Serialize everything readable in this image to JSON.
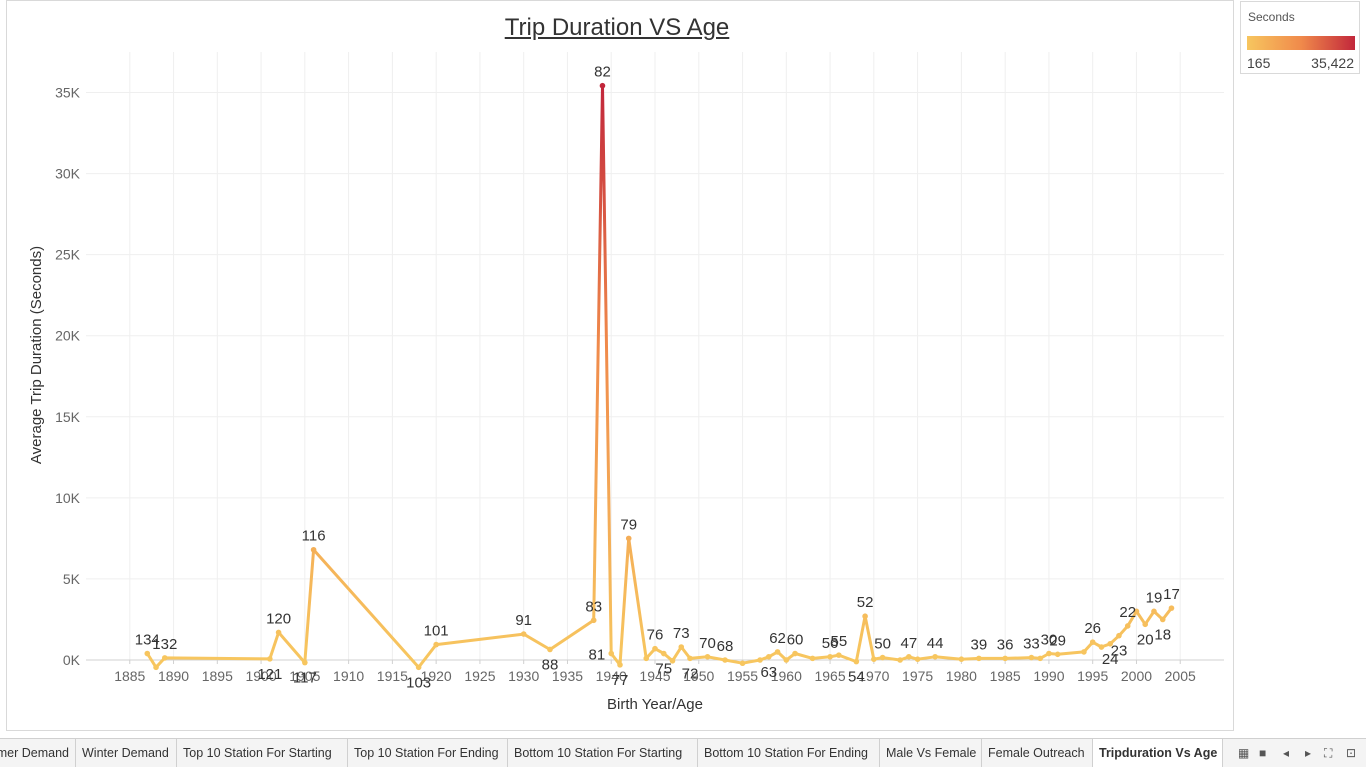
{
  "chart_data": {
    "type": "line",
    "title": "Trip Duration VS Age",
    "xlabel": "Birth Year/Age",
    "ylabel": "Average Trip Duration (Seconds)",
    "xlim": [
      1880,
      2010
    ],
    "ylim": [
      0,
      37500
    ],
    "xticks": [
      1885,
      1890,
      1895,
      1900,
      1905,
      1910,
      1915,
      1920,
      1925,
      1930,
      1935,
      1940,
      1945,
      1950,
      1955,
      1960,
      1965,
      1970,
      1975,
      1980,
      1985,
      1990,
      1995,
      2000,
      2005
    ],
    "yticks": [
      {
        "value": 0,
        "label": "0K"
      },
      {
        "value": 5000,
        "label": "5K"
      },
      {
        "value": 10000,
        "label": "10K"
      },
      {
        "value": 15000,
        "label": "15K"
      },
      {
        "value": 20000,
        "label": "20K"
      },
      {
        "value": 25000,
        "label": "25K"
      },
      {
        "value": 30000,
        "label": "30K"
      },
      {
        "value": 35000,
        "label": "35K"
      }
    ],
    "grid": true,
    "color_scale": {
      "title": "Seconds",
      "min": 165,
      "max": 35422,
      "min_label": "165",
      "max_label": "35,422",
      "colors": [
        "#f7c65f",
        "#f08a4b",
        "#c2273b"
      ]
    },
    "series": [
      {
        "points": [
          {
            "x": 1887,
            "y": 400,
            "label": "134",
            "pos": "above"
          },
          {
            "x": 1888,
            "y": -450
          },
          {
            "x": 1889,
            "y": 130,
            "label": "132",
            "pos": "above"
          },
          {
            "x": 1901,
            "y": 70,
            "label": "121",
            "pos": "below"
          },
          {
            "x": 1902,
            "y": 1700,
            "label": "120",
            "pos": "above"
          },
          {
            "x": 1905,
            "y": -160,
            "label": "117",
            "pos": "below"
          },
          {
            "x": 1906,
            "y": 6800,
            "label": "116",
            "pos": "above"
          },
          {
            "x": 1918,
            "y": -450,
            "label": "103",
            "pos": "below"
          },
          {
            "x": 1920,
            "y": 950,
            "label": "101",
            "pos": "above"
          },
          {
            "x": 1930,
            "y": 1600,
            "label": "91",
            "pos": "above"
          },
          {
            "x": 1933,
            "y": 650,
            "label": "88",
            "pos": "below"
          },
          {
            "x": 1938,
            "y": 2450,
            "label": "83",
            "pos": "above"
          },
          {
            "x": 1939,
            "y": 35422,
            "label": "82",
            "pos": "above"
          },
          {
            "x": 1940,
            "y": 400,
            "label": "81",
            "pos": "left"
          },
          {
            "x": 1941,
            "y": -300,
            "label": "77",
            "pos": "below"
          },
          {
            "x": 1942,
            "y": 7500,
            "label": "79",
            "pos": "above"
          },
          {
            "x": 1944,
            "y": 100
          },
          {
            "x": 1945,
            "y": 700,
            "label": "76",
            "pos": "above"
          },
          {
            "x": 1946,
            "y": 400,
            "label": "75",
            "pos": "below"
          },
          {
            "x": 1947,
            "y": -50
          },
          {
            "x": 1948,
            "y": 800,
            "label": "73",
            "pos": "above"
          },
          {
            "x": 1949,
            "y": 100,
            "label": "72",
            "pos": "below"
          },
          {
            "x": 1951,
            "y": 200,
            "label": "70",
            "pos": "above"
          },
          {
            "x": 1953,
            "y": 0,
            "label": "68",
            "pos": "above"
          },
          {
            "x": 1955,
            "y": -200
          },
          {
            "x": 1957,
            "y": 0
          },
          {
            "x": 1958,
            "y": 200,
            "label": "63",
            "pos": "below"
          },
          {
            "x": 1959,
            "y": 500,
            "label": "62",
            "pos": "above"
          },
          {
            "x": 1960,
            "y": 0
          },
          {
            "x": 1961,
            "y": 400,
            "label": "60",
            "pos": "above"
          },
          {
            "x": 1963,
            "y": 100
          },
          {
            "x": 1965,
            "y": 200,
            "label": "56",
            "pos": "above"
          },
          {
            "x": 1966,
            "y": 300,
            "label": "55",
            "pos": "above"
          },
          {
            "x": 1968,
            "y": -100,
            "label": "54",
            "pos": "below"
          },
          {
            "x": 1969,
            "y": 2700,
            "label": "52",
            "pos": "above"
          },
          {
            "x": 1970,
            "y": 50
          },
          {
            "x": 1971,
            "y": 150,
            "label": "50",
            "pos": "above"
          },
          {
            "x": 1973,
            "y": 0
          },
          {
            "x": 1974,
            "y": 200,
            "label": "47",
            "pos": "above"
          },
          {
            "x": 1975,
            "y": 50
          },
          {
            "x": 1977,
            "y": 200,
            "label": "44",
            "pos": "above"
          },
          {
            "x": 1980,
            "y": 50
          },
          {
            "x": 1982,
            "y": 100,
            "label": "39",
            "pos": "above"
          },
          {
            "x": 1985,
            "y": 100,
            "label": "36",
            "pos": "above"
          },
          {
            "x": 1988,
            "y": 150,
            "label": "33",
            "pos": "above"
          },
          {
            "x": 1989,
            "y": 100
          },
          {
            "x": 1990,
            "y": 400,
            "label": "30",
            "pos": "above"
          },
          {
            "x": 1991,
            "y": 350,
            "label": "29",
            "pos": "above"
          },
          {
            "x": 1994,
            "y": 500
          },
          {
            "x": 1995,
            "y": 1100,
            "label": "26",
            "pos": "above"
          },
          {
            "x": 1996,
            "y": 800
          },
          {
            "x": 1997,
            "y": 1000,
            "label": "24",
            "pos": "below"
          },
          {
            "x": 1998,
            "y": 1500,
            "label": "23",
            "pos": "below"
          },
          {
            "x": 1999,
            "y": 2100,
            "label": "22",
            "pos": "above"
          },
          {
            "x": 2000,
            "y": 3000
          },
          {
            "x": 2001,
            "y": 2200,
            "label": "20",
            "pos": "below"
          },
          {
            "x": 2002,
            "y": 3000,
            "label": "19",
            "pos": "above"
          },
          {
            "x": 2003,
            "y": 2500,
            "label": "18",
            "pos": "below"
          },
          {
            "x": 2004,
            "y": 3200,
            "label": "17",
            "pos": "above"
          }
        ]
      }
    ]
  },
  "tabs": [
    {
      "label": "Summer Demand",
      "active": false
    },
    {
      "label": "Winter Demand",
      "active": false
    },
    {
      "label": "Top 10 Station For Starting",
      "active": false
    },
    {
      "label": "Top 10 Station For Ending",
      "active": false
    },
    {
      "label": "Bottom 10 Station For Starting",
      "active": false
    },
    {
      "label": "Bottom 10 Station For Ending",
      "active": false
    },
    {
      "label": "Male Vs Female",
      "active": false
    },
    {
      "label": "Female Outreach",
      "active": false
    },
    {
      "label": "Tripduration Vs Age",
      "active": true
    }
  ],
  "tab_controls": [
    {
      "name": "grid-view-icon",
      "glyph": "▦"
    },
    {
      "name": "stop-icon",
      "glyph": "■"
    },
    {
      "name": "prev-sheet-icon",
      "glyph": "◂"
    },
    {
      "name": "next-sheet-icon",
      "glyph": "▸"
    },
    {
      "name": "fullscreen-icon",
      "glyph": "⛶"
    },
    {
      "name": "presentation-icon",
      "glyph": "⊡"
    }
  ]
}
